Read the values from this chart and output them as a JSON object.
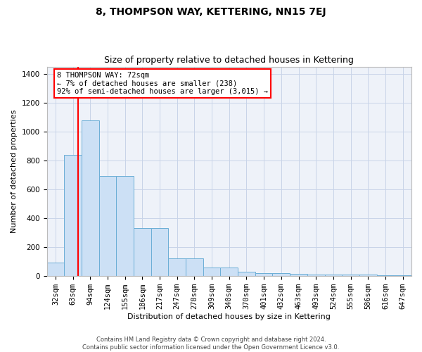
{
  "title": "8, THOMPSON WAY, KETTERING, NN15 7EJ",
  "subtitle": "Size of property relative to detached houses in Kettering",
  "xlabel": "Distribution of detached houses by size in Kettering",
  "ylabel": "Number of detached properties",
  "bin_labels": [
    "32sqm",
    "63sqm",
    "94sqm",
    "124sqm",
    "155sqm",
    "186sqm",
    "217sqm",
    "247sqm",
    "278sqm",
    "309sqm",
    "340sqm",
    "370sqm",
    "401sqm",
    "432sqm",
    "463sqm",
    "493sqm",
    "524sqm",
    "555sqm",
    "586sqm",
    "616sqm",
    "647sqm"
  ],
  "bin_values": [
    95,
    840,
    1080,
    695,
    695,
    330,
    330,
    125,
    125,
    60,
    60,
    30,
    20,
    20,
    15,
    12,
    12,
    10,
    10,
    5,
    5
  ],
  "bar_color": "#cce0f5",
  "bar_edge_color": "#6baed6",
  "vline_color": "red",
  "annotation_text": "8 THOMPSON WAY: 72sqm\n← 7% of detached houses are smaller (238)\n92% of semi-detached houses are larger (3,015) →",
  "ylim": [
    0,
    1450
  ],
  "yticks": [
    0,
    200,
    400,
    600,
    800,
    1000,
    1200,
    1400
  ],
  "footer": "Contains HM Land Registry data © Crown copyright and database right 2024.\nContains public sector information licensed under the Open Government Licence v3.0.",
  "title_fontsize": 10,
  "subtitle_fontsize": 9,
  "ylabel_fontsize": 8,
  "xlabel_fontsize": 8,
  "tick_fontsize": 7.5,
  "footer_fontsize": 6,
  "annot_fontsize": 7.5
}
